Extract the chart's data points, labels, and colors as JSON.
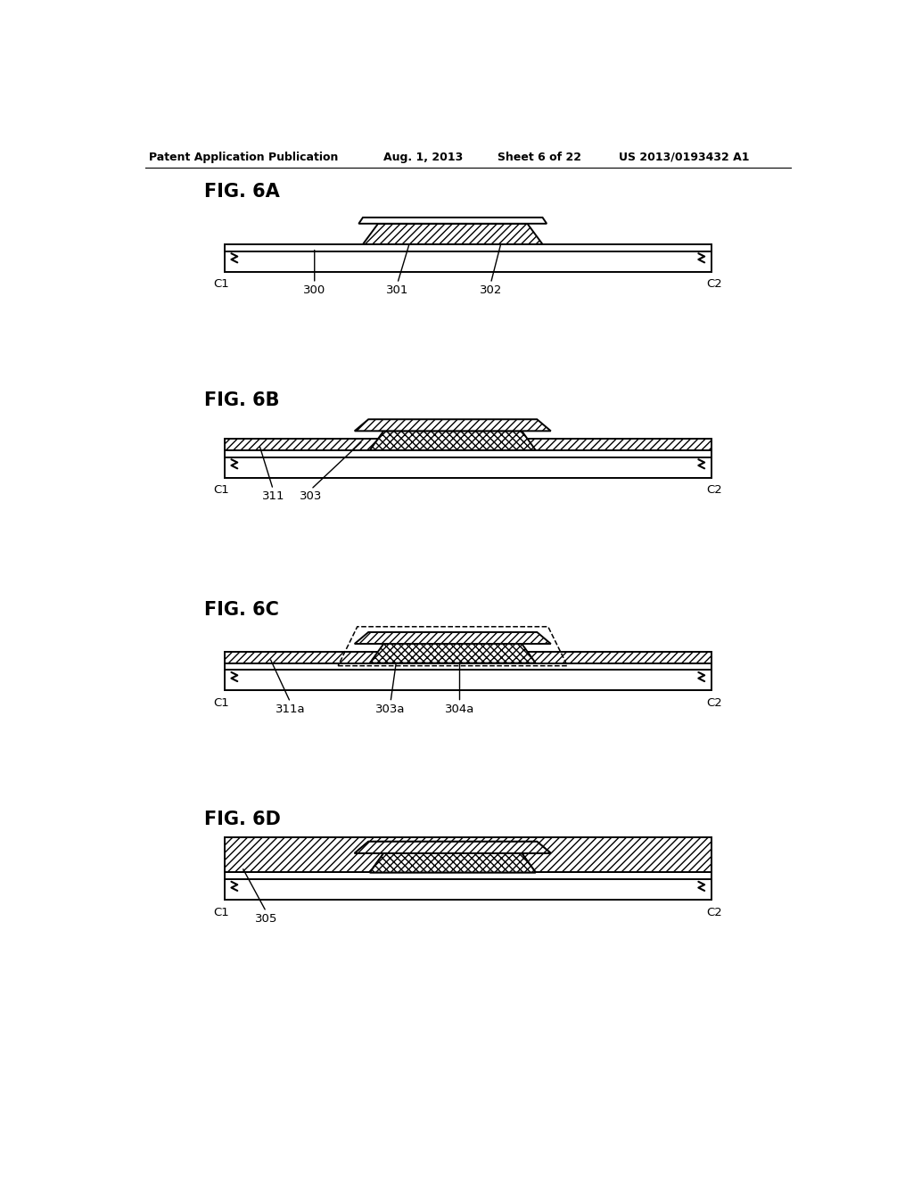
{
  "title_header": "Patent Application Publication",
  "date_header": "Aug. 1, 2013",
  "sheet_header": "Sheet 6 of 22",
  "patent_header": "US 2013/0193432 A1",
  "fig_labels": [
    "FIG. 6A",
    "FIG. 6B",
    "FIG. 6C",
    "FIG. 6D"
  ],
  "background_color": "#ffffff",
  "line_color": "#000000"
}
